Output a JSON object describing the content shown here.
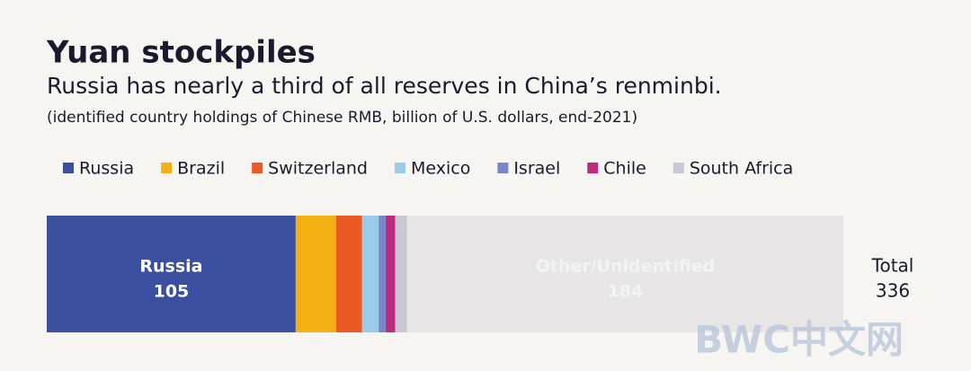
{
  "chart_data": {
    "type": "stacked-bar",
    "title": "Yuan stockpiles",
    "subtitle": "Russia has nearly a third of all reserves in China’s renminbi.",
    "note": "(identified country holdings of Chinese RMB, billion of U.S. dollars, end-2021)",
    "series": [
      {
        "name": "Russia",
        "color": "#3b4fa0",
        "values": [
          105
        ]
      },
      {
        "name": "Brazil",
        "color": "#f5b014",
        "values": [
          17
        ]
      },
      {
        "name": "Switzerland",
        "color": "#ec5a24",
        "values": [
          11
        ]
      },
      {
        "name": "Mexico",
        "color": "#9ccbe8",
        "values": [
          7
        ]
      },
      {
        "name": "Israel",
        "color": "#7b86c9",
        "values": [
          3
        ]
      },
      {
        "name": "Chile",
        "color": "#bf2a7e",
        "values": [
          4
        ]
      },
      {
        "name": "South Africa",
        "color": "#c9c6d6",
        "values": [
          5
        ]
      }
    ],
    "other": {
      "name": "Other/Unidentified",
      "color": "#e7e5e5",
      "value": 184
    },
    "total": {
      "label": "Total",
      "value": 336
    },
    "watermark": "BWC中文网"
  }
}
